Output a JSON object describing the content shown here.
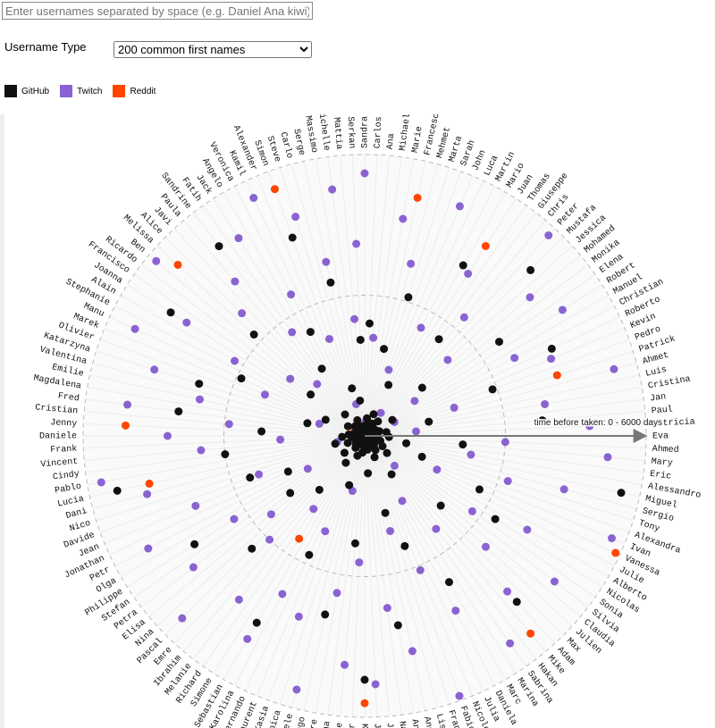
{
  "input_placeholder": "Enter usernames separated by space (e.g. Daniel Ana kiwi)",
  "username_type_label": "Username Type",
  "username_type_option": "200 common first names",
  "chart_data": {
    "type": "radial-scatter",
    "axis_label": "time before taken: 0 - 6000 days",
    "rlim": [
      0,
      6000
    ],
    "rticks": [
      3000,
      6000
    ],
    "categories": [
      "Sandra",
      "Carlos",
      "Ana",
      "Michael",
      "Marie",
      "Francesco",
      "Mehmet",
      "Marta",
      "Sarah",
      "John",
      "Luca",
      "Martin",
      "Mario",
      "Juan",
      "Thomas",
      "Giuseppe",
      "Chris",
      "Peter",
      "Mustafa",
      "Jessica",
      "Mohamed",
      "Monika",
      "Elena",
      "Robert",
      "Manuel",
      "Christian",
      "Roberto",
      "Kevin",
      "Pedro",
      "Patrick",
      "Ahmet",
      "Luis",
      "Cristina",
      "Jan",
      "Paul",
      "Patricia",
      "Eva",
      "Ahmed",
      "Mary",
      "Eric",
      "Alessandro",
      "Miguel",
      "Sergio",
      "Tony",
      "Alexandra",
      "Ivan",
      "Vanessa",
      "Julie",
      "Alberto",
      "Nicolas",
      "Sonia",
      "Silvia",
      "Claudia",
      "Julien",
      "Max",
      "Adam",
      "Mike",
      "Hakan",
      "Sabrina",
      "Marina",
      "Marc",
      "Daniela",
      "Julia",
      "Nicole",
      "Fabio",
      "Francesca",
      "Lisa",
      "Angela",
      "Anna",
      "Natalia",
      "Javier",
      "Jorge",
      "Karim",
      "Victor",
      "Lucie",
      "Diana",
      "Pierre",
      "Diego",
      "Michele",
      "Monica",
      "Kasia",
      "Laurent",
      "Fernando",
      "Karolina",
      "Sebastian",
      "Simone",
      "Richard",
      "Melanie",
      "Ibrahim",
      "Emre",
      "Pascal",
      "Nina",
      "Elisa",
      "Petra",
      "Stefan",
      "Philippe",
      "Olga",
      "Petr",
      "Jonathan",
      "Jean",
      "Davide",
      "Nico",
      "Dani",
      "Lucia",
      "Pablo",
      "Cindy",
      "Vincent",
      "Frank",
      "Daniele",
      "Jenny",
      "Cristian",
      "Fred",
      "Magdalena",
      "Emilie",
      "Valentina",
      "Katarzyna",
      "Olivier",
      "Marek",
      "Manu",
      "Stephanie",
      "Alain",
      "Joanna",
      "Francisco",
      "Ricardo",
      "Ben",
      "Melissa",
      "Alice",
      "Javi",
      "Paula",
      "Sandrine",
      "Fatih",
      "Jack",
      "Angelo",
      "Veronica",
      "Kamil",
      "Alexander",
      "Simon",
      "Steve",
      "Carlo",
      "Serge",
      "Massimo",
      "Michelle",
      "Mattia",
      "Serkan"
    ],
    "series": [
      {
        "name": "GitHub",
        "color": "#111111",
        "values": [
          220,
          2400,
          null,
          380,
          150,
          1900,
          90,
          3100,
          260,
          500,
          1200,
          140,
          4200,
          310,
          70,
          2600,
          180,
          420,
          5000,
          95,
          1600,
          250,
          3500,
          130,
          680,
          200,
          4400,
          60,
          2900,
          330,
          110,
          1400,
          470,
          80,
          3800,
          240,
          160,
          520,
          2100,
          75,
          900,
          5600,
          210,
          350,
          1300,
          100,
          2700,
          190,
          440,
          3300,
          120,
          600,
          85,
          2200,
          280,
          4800,
          150,
          380,
          1000,
          230,
          3600,
          90,
          500,
          170,
          2500,
          65,
          1700,
          300,
          4100,
          140,
          800,
          260,
          5200,
          110,
          2300,
          360,
          75,
          3900,
          200,
          1100,
          450,
          130,
          2800,
          95,
          4600,
          180,
          700,
          320,
          1500,
          60,
          3400,
          250,
          560,
          2000,
          115,
          4300,
          210,
          85,
          1800,
          390,
          2600,
          155,
          650,
          5400,
          100,
          3000,
          270,
          480,
          125,
          2200,
          340,
          4000,
          70,
          1250,
          220,
          3700,
          160,
          900,
          2900,
          105,
          410,
          4900,
          195,
          1450,
          80,
          3200,
          290,
          620,
          135,
          5100,
          240,
          1700,
          90,
          2500,
          370,
          150,
          4500,
          210,
          1050,
          3350,
          170,
          760,
          120,
          2050
        ]
      },
      {
        "name": "Twitch",
        "color": "#8a63d2",
        "values": [
          5600,
          300,
          2100,
          120,
          4700,
          80,
          3800,
          250,
          1500,
          5300,
          90,
          2600,
          180,
          4100,
          600,
          150,
          3300,
          5800,
          110,
          2400,
          4600,
          200,
          1300,
          5000,
          95,
          3600,
          700,
          4300,
          160,
          2000,
          5500,
          130,
          3900,
          250,
          1100,
          4800,
          75,
          3000,
          5200,
          190,
          2300,
          140,
          4400,
          3200,
          85,
          5700,
          1700,
          260,
          4000,
          120,
          2800,
          5100,
          170,
          3500,
          900,
          4500,
          100,
          2500,
          5400,
          210,
          1600,
          4200,
          90,
          3100,
          5900,
          230,
          2100,
          4700,
          140,
          3700,
          800,
          5300,
          115,
          2700,
          4900,
          180,
          3400,
          1200,
          5600,
          95,
          4100,
          2200,
          150,
          3800,
          5000,
          260,
          1900,
          4400,
          130,
          3000,
          5500,
          200,
          2600,
          4600,
          85,
          3300,
          1400,
          5200,
          175,
          3900,
          2400,
          110,
          4800,
          600,
          5700,
          220,
          3500,
          1800,
          4200,
          140,
          2900,
          5100,
          190,
          3600,
          1000,
          4700,
          95,
          2300,
          5400,
          160,
          3200,
          4500,
          120,
          2000,
          5800,
          240,
          3700,
          1500,
          4300,
          105,
          2700,
          5000,
          180,
          3400,
          5600,
          130,
          2200,
          4900,
          700,
          3800,
          150,
          5300,
          2500,
          4100
        ]
      },
      {
        "name": "Reddit",
        "color": "#ff4500",
        "values": [
          180,
          null,
          120,
          250,
          60,
          5200,
          140,
          90,
          300,
          null,
          210,
          70,
          150,
          4800,
          110,
          260,
          80,
          null,
          190,
          130,
          230,
          50,
          170,
          100,
          null,
          270,
          140,
          60,
          200,
          4300,
          120,
          90,
          240,
          null,
          160,
          75,
          210,
          110,
          280,
          65,
          null,
          150,
          190,
          85,
          230,
          130,
          5900,
          100,
          170,
          60,
          250,
          null,
          140,
          200,
          80,
          120,
          5500,
          220,
          95,
          160,
          130,
          null,
          260,
          70,
          180,
          110,
          240,
          90,
          null,
          200,
          150,
          60,
          5700,
          170,
          120,
          230,
          80,
          null,
          190,
          140,
          100,
          260,
          70,
          210,
          160,
          2600,
          90,
          180,
          130,
          null,
          250,
          110,
          60,
          220,
          150,
          85,
          200,
          120,
          null,
          270,
          95,
          170,
          140,
          4700,
          80,
          230,
          110,
          190,
          60,
          5100,
          210,
          130,
          160,
          null,
          100,
          240,
          75,
          180,
          120,
          200,
          150,
          90,
          260,
          null,
          140,
          5400,
          110,
          220,
          70,
          170,
          130,
          190,
          null,
          85,
          240,
          160,
          5600,
          120,
          200,
          95,
          150,
          230,
          110,
          null
        ]
      }
    ]
  }
}
